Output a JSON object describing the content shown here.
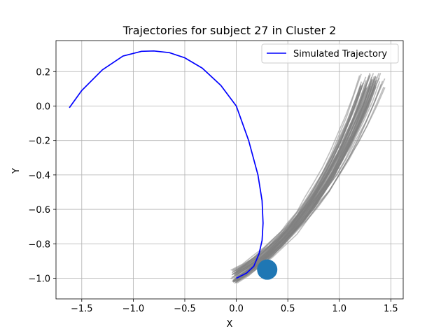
{
  "chart_data": {
    "type": "line",
    "title": "Trajectories for subject 27 in Cluster 2",
    "xlabel": "X",
    "ylabel": "Y",
    "xlim": [
      -1.75,
      1.62
    ],
    "ylim": [
      -1.12,
      0.38
    ],
    "xticks": [
      -1.5,
      -1.0,
      -0.5,
      0.0,
      0.5,
      1.0,
      1.5
    ],
    "xtick_labels": [
      "−1.5",
      "−1.0",
      "−0.5",
      "0.0",
      "0.5",
      "1.0",
      "1.5"
    ],
    "yticks": [
      0.2,
      0.0,
      -0.2,
      -0.4,
      -0.6,
      -0.8,
      -1.0
    ],
    "ytick_labels": [
      "0.2",
      "0.0",
      "−0.2",
      "−0.4",
      "−0.6",
      "−0.8",
      "−1.0"
    ],
    "grid": true,
    "legend_position": "top-right",
    "legend": [
      {
        "label": "Simulated Trajectory",
        "color": "#0000ff"
      }
    ],
    "simulated": {
      "name": "Simulated Trajectory",
      "color": "#0000ff",
      "x": [
        -1.62,
        -1.5,
        -1.3,
        -1.1,
        -0.92,
        -0.8,
        -0.65,
        -0.5,
        -0.33,
        -0.15,
        0.0,
        0.12,
        0.21,
        0.25,
        0.26,
        0.25,
        0.22,
        0.17,
        0.1,
        0.0
      ],
      "y": [
        -0.01,
        0.09,
        0.21,
        0.29,
        0.318,
        0.32,
        0.31,
        0.28,
        0.22,
        0.12,
        0.0,
        -0.2,
        -0.4,
        -0.55,
        -0.68,
        -0.78,
        -0.86,
        -0.93,
        -0.97,
        -1.0
      ]
    },
    "observed": {
      "color": "#808080",
      "count": 60,
      "start": [
        0.0,
        -0.99
      ],
      "end_x_range": [
        1.2,
        1.44
      ],
      "end_y_range": [
        0.1,
        0.19
      ]
    },
    "marker": {
      "x": 0.3,
      "y": -0.95,
      "color": "#1f77b4"
    }
  }
}
